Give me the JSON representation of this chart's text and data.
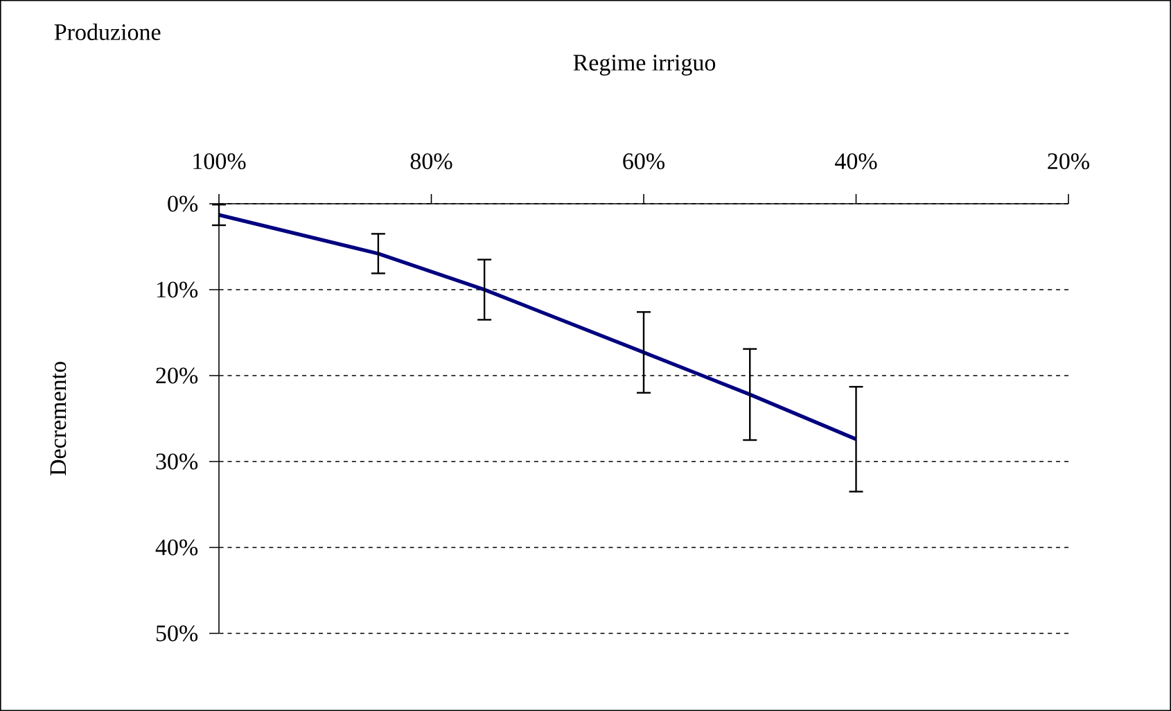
{
  "chart_data": {
    "type": "line",
    "title": "Produzione",
    "xlabel": "Regime irriguo",
    "ylabel": "Decremento",
    "x": [
      100,
      85,
      75,
      60,
      50,
      40
    ],
    "values": [
      1.3,
      5.8,
      10,
      17.3,
      22.2,
      27.4
    ],
    "errors": [
      1.2,
      2.3,
      3.5,
      4.7,
      5.3,
      6.1
    ],
    "color": "#000080",
    "line_style": "solid",
    "marker": "none",
    "grid": "y",
    "xlim": [
      100,
      20
    ],
    "xticks": [
      {
        "value": 100,
        "label": "100%"
      },
      {
        "value": 80,
        "label": "80%"
      },
      {
        "value": 60,
        "label": "60%"
      },
      {
        "value": 40,
        "label": "40%"
      },
      {
        "value": 20,
        "label": "20%"
      }
    ],
    "ylim": [
      50,
      0
    ],
    "yticks": [
      {
        "value": 0,
        "label": "0%"
      },
      {
        "value": 10,
        "label": "10%"
      },
      {
        "value": 20,
        "label": "20%"
      },
      {
        "value": 30,
        "label": "30%"
      },
      {
        "value": 40,
        "label": "40%"
      },
      {
        "value": 50,
        "label": "50%"
      }
    ]
  }
}
